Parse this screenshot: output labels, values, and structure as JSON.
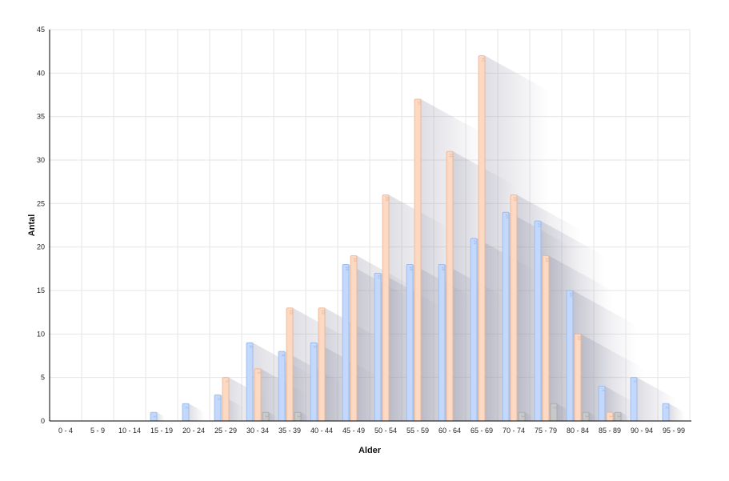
{
  "chart_data": {
    "type": "bar",
    "title": "",
    "xlabel": "Alder",
    "ylabel": "Antal",
    "ylim": [
      0,
      45
    ],
    "yticks": [
      0,
      5,
      10,
      15,
      20,
      25,
      30,
      35,
      40,
      45
    ],
    "grid": true,
    "legend": "none",
    "categories": [
      "0 - 4",
      "5 - 9",
      "10 - 14",
      "15 - 19",
      "20 - 24",
      "25 - 29",
      "30 - 34",
      "35 - 39",
      "40 - 44",
      "45 - 49",
      "50 - 54",
      "55 - 59",
      "60 - 64",
      "65 - 69",
      "70 - 74",
      "75 - 79",
      "80 - 84",
      "85 - 89",
      "90 - 94",
      "95 - 99"
    ],
    "series": [
      {
        "color": "#c3d8fb",
        "stroke": "#93b6ee",
        "values": [
          0,
          0,
          0,
          1,
          2,
          3,
          9,
          8,
          9,
          18,
          17,
          18,
          18,
          21,
          24,
          23,
          15,
          4,
          5,
          2
        ]
      },
      {
        "color": "#fcd9c3",
        "stroke": "#eeb08e",
        "values": [
          0,
          0,
          0,
          0,
          0,
          5,
          6,
          13,
          13,
          19,
          26,
          37,
          31,
          42,
          26,
          19,
          10,
          1,
          0,
          0
        ]
      },
      {
        "color": "#c8c8c8",
        "stroke": "#a8a8a8",
        "values": [
          0,
          0,
          0,
          0,
          0,
          0,
          1,
          1,
          0,
          0,
          0,
          0,
          0,
          0,
          1,
          2,
          1,
          1,
          0,
          0
        ]
      }
    ]
  }
}
